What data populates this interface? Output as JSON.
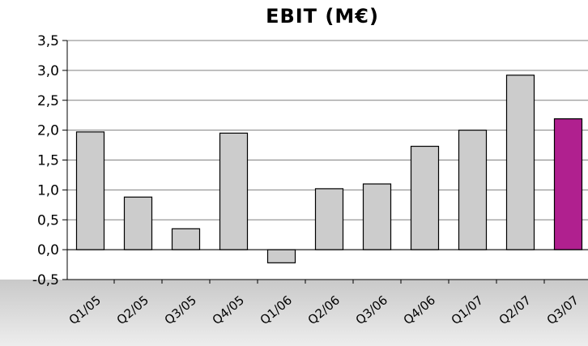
{
  "chart_data": {
    "type": "bar",
    "title": "EBIT (M€)",
    "xlabel": "",
    "ylabel": "",
    "categories": [
      "Q1/05",
      "Q2/05",
      "Q3/05",
      "Q4/05",
      "Q1/06",
      "Q2/06",
      "Q3/06",
      "Q4/06",
      "Q1/07",
      "Q2/07",
      "Q3/07"
    ],
    "values": [
      1.97,
      0.88,
      0.35,
      1.95,
      -0.22,
      1.02,
      1.1,
      1.73,
      2.0,
      2.92,
      2.19
    ],
    "bar_colors": [
      "#cccccc",
      "#cccccc",
      "#cccccc",
      "#cccccc",
      "#cccccc",
      "#cccccc",
      "#cccccc",
      "#cccccc",
      "#cccccc",
      "#cccccc",
      "#b0208f"
    ],
    "ylim": [
      -0.5,
      3.5
    ],
    "yticks": [
      "3,5",
      "3,0",
      "2,5",
      "2,0",
      "1,5",
      "1,0",
      "0,5",
      "0,0",
      "-0,5"
    ],
    "grid": true,
    "legend": "none"
  }
}
